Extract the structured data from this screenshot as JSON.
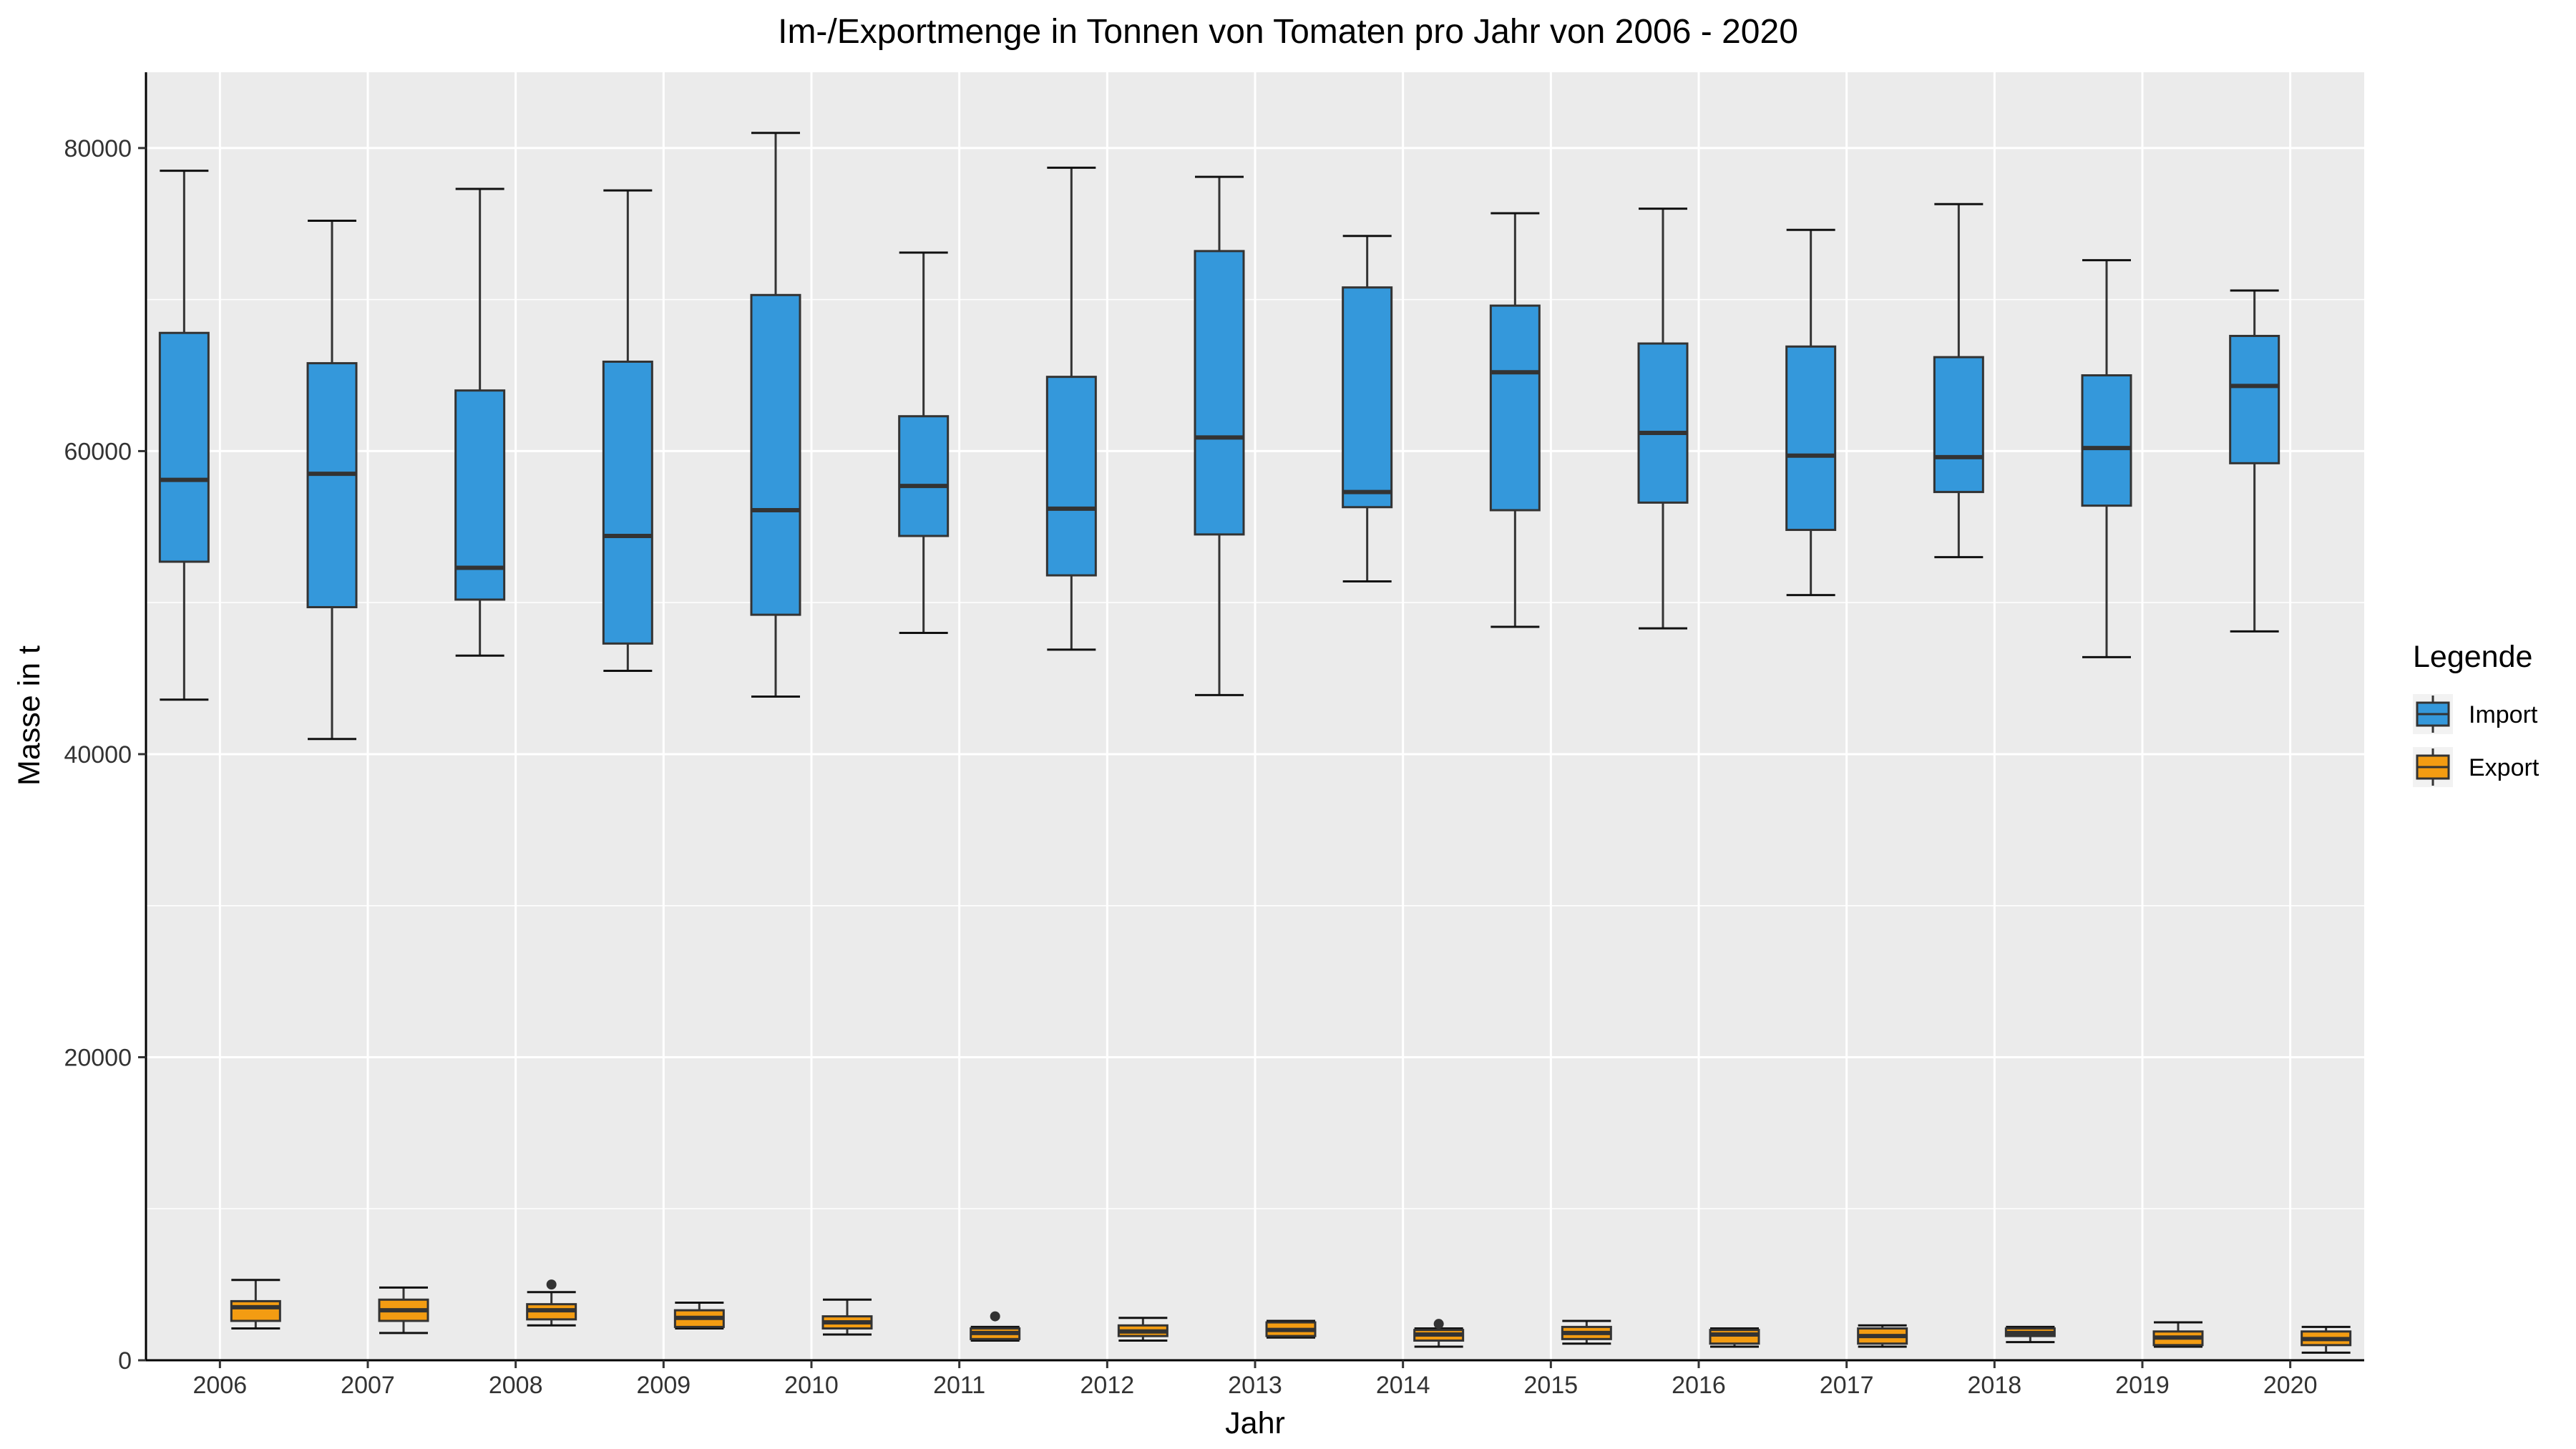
{
  "chart_data": {
    "type": "boxplot",
    "title": "Im-/Exportmenge in Tonnen von Tomaten pro Jahr von 2006 - 2020",
    "xlabel": "Jahr",
    "ylabel": "Masse in t",
    "ylim": [
      0,
      85000
    ],
    "yticks": [
      0,
      20000,
      40000,
      60000,
      80000
    ],
    "grid": true,
    "categories": [
      "2006",
      "2007",
      "2008",
      "2009",
      "2010",
      "2011",
      "2012",
      "2013",
      "2014",
      "2015",
      "2016",
      "2017",
      "2018",
      "2019",
      "2020"
    ],
    "legend": {
      "title": "Legende",
      "position": "right"
    },
    "series": [
      {
        "name": "Import",
        "color": "#3498db",
        "boxes": [
          {
            "min": 43600,
            "q1": 52700,
            "median": 58100,
            "q3": 67800,
            "max": 78500,
            "outliers": []
          },
          {
            "min": 41000,
            "q1": 49700,
            "median": 58500,
            "q3": 65800,
            "max": 75200,
            "outliers": []
          },
          {
            "min": 46500,
            "q1": 50200,
            "median": 52300,
            "q3": 64000,
            "max": 77300,
            "outliers": []
          },
          {
            "min": 45500,
            "q1": 47300,
            "median": 54400,
            "q3": 65900,
            "max": 77200,
            "outliers": []
          },
          {
            "min": 43800,
            "q1": 49200,
            "median": 56100,
            "q3": 70300,
            "max": 81000,
            "outliers": []
          },
          {
            "min": 48000,
            "q1": 54400,
            "median": 57700,
            "q3": 62300,
            "max": 73100,
            "outliers": []
          },
          {
            "min": 46900,
            "q1": 51800,
            "median": 56200,
            "q3": 64900,
            "max": 78700,
            "outliers": []
          },
          {
            "min": 43900,
            "q1": 54500,
            "median": 60900,
            "q3": 73200,
            "max": 78100,
            "outliers": []
          },
          {
            "min": 51400,
            "q1": 56300,
            "median": 57300,
            "q3": 70800,
            "max": 74200,
            "outliers": []
          },
          {
            "min": 48400,
            "q1": 56100,
            "median": 65200,
            "q3": 69600,
            "max": 75700,
            "outliers": []
          },
          {
            "min": 48300,
            "q1": 56600,
            "median": 61200,
            "q3": 67100,
            "max": 76000,
            "outliers": []
          },
          {
            "min": 50500,
            "q1": 54800,
            "median": 59700,
            "q3": 66900,
            "max": 74600,
            "outliers": []
          },
          {
            "min": 53000,
            "q1": 57300,
            "median": 59600,
            "q3": 66200,
            "max": 76300,
            "outliers": []
          },
          {
            "min": 46400,
            "q1": 56400,
            "median": 60200,
            "q3": 65000,
            "max": 72600,
            "outliers": []
          },
          {
            "min": 48100,
            "q1": 59200,
            "median": 64300,
            "q3": 67600,
            "max": 70600,
            "outliers": []
          }
        ]
      },
      {
        "name": "Export",
        "color": "#f39c12",
        "boxes": [
          {
            "min": 2100,
            "q1": 2600,
            "median": 3500,
            "q3": 3900,
            "max": 5300,
            "outliers": []
          },
          {
            "min": 1800,
            "q1": 2600,
            "median": 3300,
            "q3": 4000,
            "max": 4800,
            "outliers": []
          },
          {
            "min": 2300,
            "q1": 2700,
            "median": 3300,
            "q3": 3700,
            "max": 4500,
            "outliers": [
              5000
            ]
          },
          {
            "min": 2100,
            "q1": 2200,
            "median": 2800,
            "q3": 3300,
            "max": 3800,
            "outliers": []
          },
          {
            "min": 1700,
            "q1": 2100,
            "median": 2500,
            "q3": 2900,
            "max": 4000,
            "outliers": []
          },
          {
            "min": 1300,
            "q1": 1400,
            "median": 1800,
            "q3": 2100,
            "max": 2200,
            "outliers": [
              2900
            ]
          },
          {
            "min": 1300,
            "q1": 1600,
            "median": 1900,
            "q3": 2300,
            "max": 2800,
            "outliers": []
          },
          {
            "min": 1500,
            "q1": 1600,
            "median": 2000,
            "q3": 2500,
            "max": 2600,
            "outliers": []
          },
          {
            "min": 900,
            "q1": 1300,
            "median": 1700,
            "q3": 2000,
            "max": 2100,
            "outliers": [
              2400
            ]
          },
          {
            "min": 1100,
            "q1": 1400,
            "median": 1800,
            "q3": 2200,
            "max": 2600,
            "outliers": []
          },
          {
            "min": 900,
            "q1": 1100,
            "median": 1700,
            "q3": 2000,
            "max": 2100,
            "outliers": []
          },
          {
            "min": 900,
            "q1": 1100,
            "median": 1600,
            "q3": 2100,
            "max": 2300,
            "outliers": []
          },
          {
            "min": 1200,
            "q1": 1600,
            "median": 1800,
            "q3": 2100,
            "max": 2200,
            "outliers": []
          },
          {
            "min": 900,
            "q1": 1000,
            "median": 1500,
            "q3": 1900,
            "max": 2500,
            "outliers": []
          },
          {
            "min": 500,
            "q1": 1000,
            "median": 1400,
            "q3": 1900,
            "max": 2200,
            "outliers": []
          }
        ]
      }
    ]
  }
}
